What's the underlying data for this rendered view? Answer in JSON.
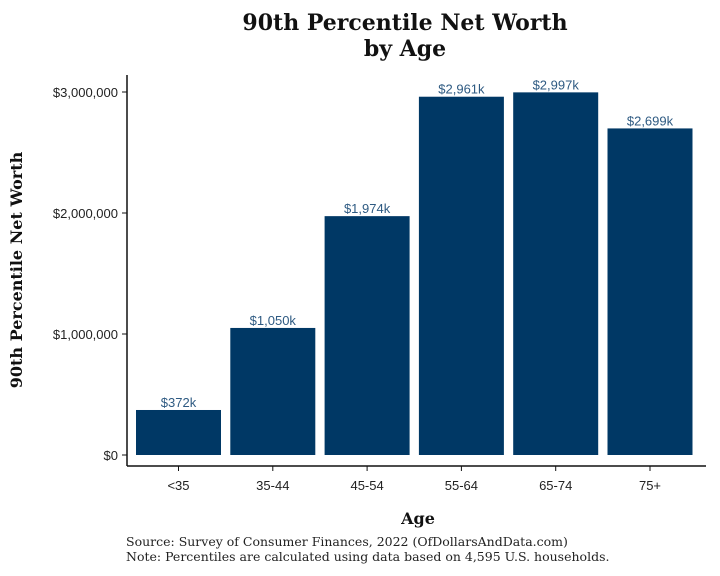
{
  "chart_data": {
    "type": "bar",
    "title": "90th Percentile Net Worth\nby Age",
    "title_lines": [
      "90th Percentile Net Worth",
      "by Age"
    ],
    "xlabel": "Age",
    "ylabel": "90th Percentile Net Worth",
    "categories": [
      "<35",
      "35-44",
      "45-54",
      "55-64",
      "65-74",
      "75+"
    ],
    "values": [
      372000,
      1050000,
      1974000,
      2961000,
      2997000,
      2699000
    ],
    "data_labels": [
      "$372k",
      "$1,050k",
      "$1,974k",
      "$2,961k",
      "$2,997k",
      "$2,699k"
    ],
    "yticks": [
      0,
      1000000,
      2000000,
      3000000
    ],
    "ytick_labels": [
      "$0",
      "$1,000,000",
      "$2,000,000",
      "$3,000,000"
    ],
    "ylim": [
      0,
      3000000
    ],
    "grid": false,
    "legend": "none",
    "bar_color": "#003865",
    "label_color": "#2e5a82",
    "notes": [
      "Source:  Survey of Consumer Finances, 2022 (OfDollarsAndData.com)",
      "Note: Percentiles are calculated using data based on 4,595 U.S. households."
    ]
  }
}
